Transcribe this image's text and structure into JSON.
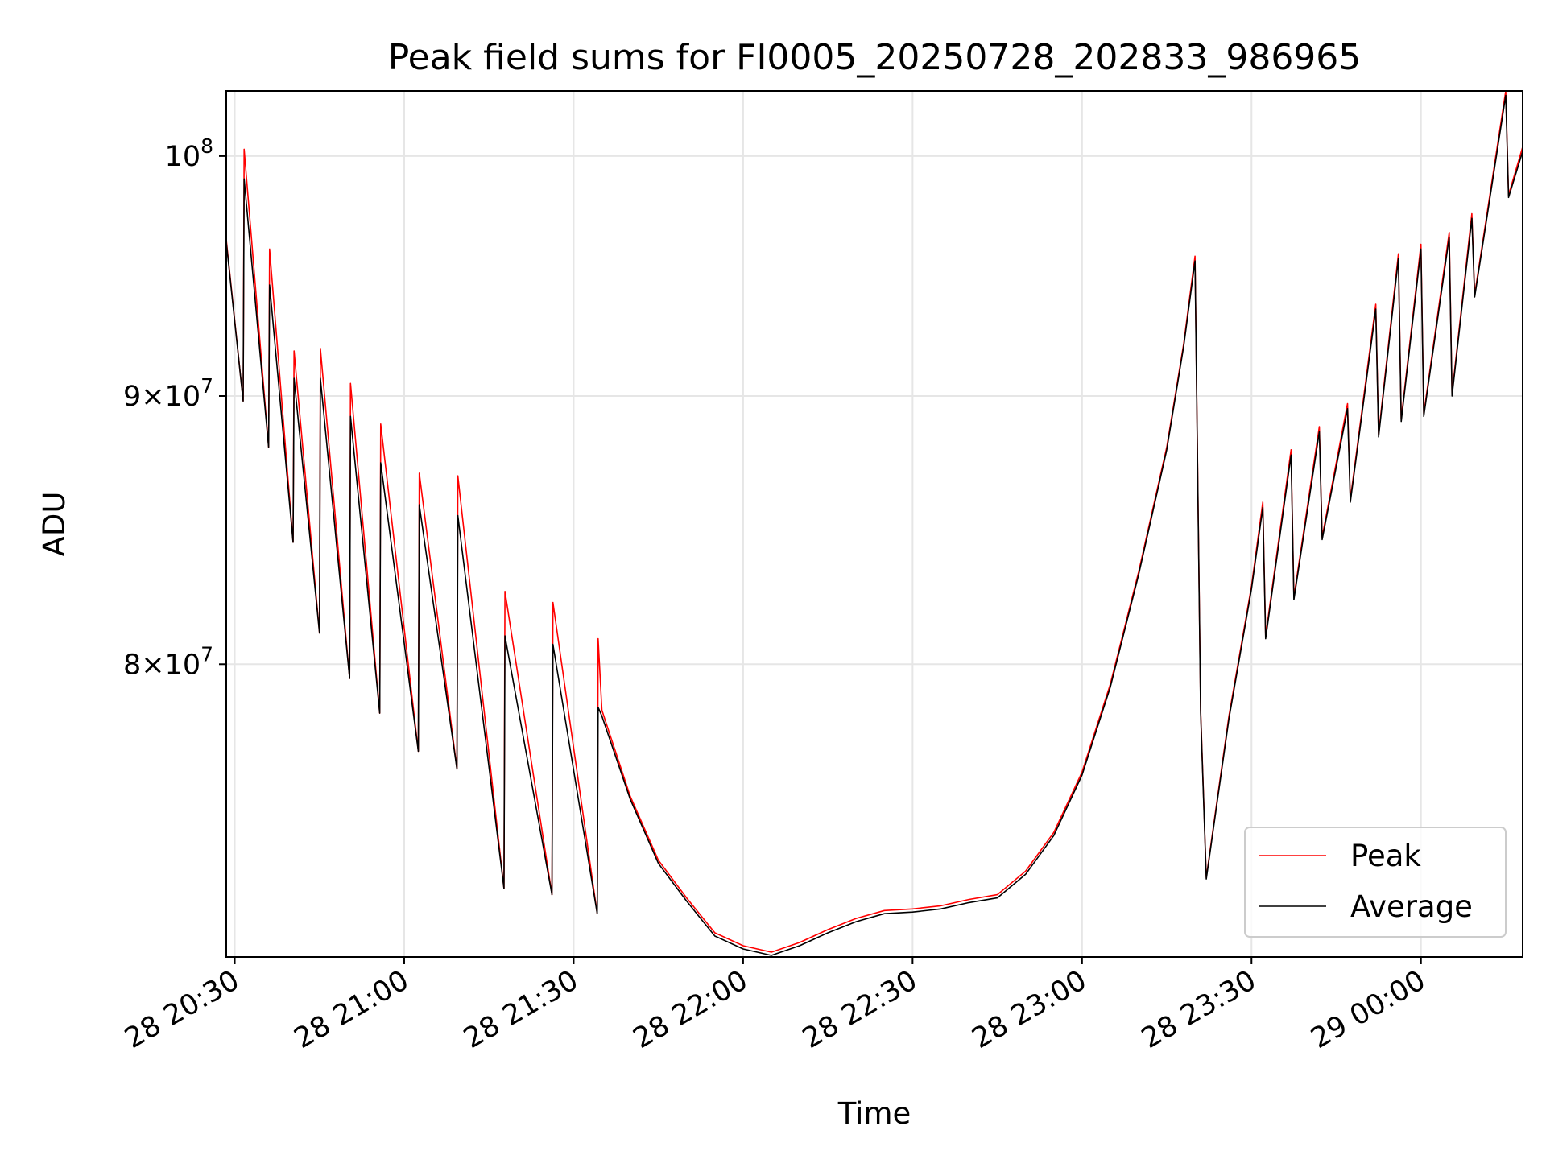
{
  "chart_data": {
    "type": "line",
    "title": "Peak field sums for FI0005_20250728_202833_986965",
    "xlabel": "Time",
    "ylabel": "ADU",
    "y_scale": "log",
    "ylim": [
      70350000,
      102900000
    ],
    "xlim": [
      "2025-07-28T20:28:30",
      "2025-07-29T00:18:00"
    ],
    "grid": true,
    "legend_position": "lower right",
    "x_ticks": [
      {
        "value": "2025-07-28T20:30:00",
        "label": "28 20:30"
      },
      {
        "value": "2025-07-28T21:00:00",
        "label": "28 21:00"
      },
      {
        "value": "2025-07-28T21:30:00",
        "label": "28 21:30"
      },
      {
        "value": "2025-07-28T22:00:00",
        "label": "28 22:00"
      },
      {
        "value": "2025-07-28T22:30:00",
        "label": "28 22:30"
      },
      {
        "value": "2025-07-28T23:00:00",
        "label": "28 23:00"
      },
      {
        "value": "2025-07-28T23:30:00",
        "label": "28 23:30"
      },
      {
        "value": "2025-07-29T00:00:00",
        "label": "29 00:00"
      }
    ],
    "y_ticks": [
      {
        "value": 80000000,
        "mantissa": "8",
        "base": "10",
        "exponent": "7"
      },
      {
        "value": 90000000,
        "mantissa": "9",
        "base": "10",
        "exponent": "7"
      },
      {
        "value": 100000000,
        "mantissa": "",
        "base": "10",
        "exponent": "8"
      }
    ],
    "series": [
      {
        "name": "Peak",
        "color": "#ff0000",
        "points": [
          [
            "2025-07-28T20:28:30",
            96400000
          ],
          [
            "2025-07-28T20:31:30",
            89800000
          ],
          [
            "2025-07-28T20:31:40",
            100300000
          ],
          [
            "2025-07-28T20:36:00",
            88000000
          ],
          [
            "2025-07-28T20:36:10",
            96000000
          ],
          [
            "2025-07-28T20:40:20",
            84400000
          ],
          [
            "2025-07-28T20:40:30",
            91800000
          ],
          [
            "2025-07-28T20:45:00",
            81100000
          ],
          [
            "2025-07-28T20:45:10",
            91900000
          ],
          [
            "2025-07-28T20:50:20",
            79500000
          ],
          [
            "2025-07-28T20:50:30",
            90500000
          ],
          [
            "2025-07-28T20:55:40",
            78300000
          ],
          [
            "2025-07-28T20:55:50",
            88900000
          ],
          [
            "2025-07-28T21:02:30",
            77000000
          ],
          [
            "2025-07-28T21:02:40",
            87000000
          ],
          [
            "2025-07-28T21:09:20",
            76400000
          ],
          [
            "2025-07-28T21:09:30",
            86900000
          ],
          [
            "2025-07-28T21:17:40",
            72500000
          ],
          [
            "2025-07-28T21:17:50",
            82600000
          ],
          [
            "2025-07-28T21:26:10",
            72300000
          ],
          [
            "2025-07-28T21:26:20",
            82200000
          ],
          [
            "2025-07-28T21:34:10",
            71700000
          ],
          [
            "2025-07-28T21:34:20",
            80900000
          ],
          [
            "2025-07-28T21:35:00",
            78400000
          ],
          [
            "2025-07-28T21:40:00",
            75500000
          ],
          [
            "2025-07-28T21:45:00",
            73400000
          ],
          [
            "2025-07-28T21:50:00",
            72200000
          ],
          [
            "2025-07-28T21:55:00",
            71100000
          ],
          [
            "2025-07-28T22:00:00",
            70700000
          ],
          [
            "2025-07-28T22:05:00",
            70500000
          ],
          [
            "2025-07-28T22:10:00",
            70800000
          ],
          [
            "2025-07-28T22:15:00",
            71200000
          ],
          [
            "2025-07-28T22:20:00",
            71550000
          ],
          [
            "2025-07-28T22:25:00",
            71800000
          ],
          [
            "2025-07-28T22:30:00",
            71850000
          ],
          [
            "2025-07-28T22:35:00",
            71950000
          ],
          [
            "2025-07-28T22:40:00",
            72150000
          ],
          [
            "2025-07-28T22:45:00",
            72300000
          ],
          [
            "2025-07-28T22:50:00",
            73050000
          ],
          [
            "2025-07-28T22:55:00",
            74300000
          ],
          [
            "2025-07-28T23:00:00",
            76300000
          ],
          [
            "2025-07-28T23:05:00",
            79300000
          ],
          [
            "2025-07-28T23:10:00",
            83300000
          ],
          [
            "2025-07-28T23:15:00",
            88000000
          ],
          [
            "2025-07-28T23:18:00",
            92100000
          ],
          [
            "2025-07-28T23:20:00",
            95700000
          ],
          [
            "2025-07-28T23:21:00",
            78400000
          ],
          [
            "2025-07-28T23:22:00",
            72850000
          ],
          [
            "2025-07-28T23:26:00",
            78200000
          ],
          [
            "2025-07-28T23:30:00",
            82800000
          ],
          [
            "2025-07-28T23:32:00",
            85900000
          ],
          [
            "2025-07-28T23:32:30",
            81000000
          ],
          [
            "2025-07-28T23:37:00",
            87900000
          ],
          [
            "2025-07-28T23:37:30",
            82400000
          ],
          [
            "2025-07-28T23:42:00",
            88800000
          ],
          [
            "2025-07-28T23:42:30",
            84600000
          ],
          [
            "2025-07-28T23:47:00",
            89700000
          ],
          [
            "2025-07-28T23:47:30",
            86000000
          ],
          [
            "2025-07-28T23:52:00",
            93700000
          ],
          [
            "2025-07-28T23:52:30",
            88500000
          ],
          [
            "2025-07-28T23:56:00",
            95800000
          ],
          [
            "2025-07-28T23:56:30",
            89100000
          ],
          [
            "2025-07-29T00:00:00",
            96200000
          ],
          [
            "2025-07-29T00:00:30",
            89300000
          ],
          [
            "2025-07-29T00:05:00",
            96700000
          ],
          [
            "2025-07-29T00:05:30",
            90100000
          ],
          [
            "2025-07-29T00:09:00",
            97500000
          ],
          [
            "2025-07-29T00:09:30",
            94100000
          ],
          [
            "2025-07-29T00:15:00",
            102900000
          ],
          [
            "2025-07-29T00:15:30",
            98300000
          ],
          [
            "2025-07-29T00:18:00",
            100400000
          ]
        ]
      },
      {
        "name": "Average",
        "color": "#000000",
        "points": [
          [
            "2025-07-28T20:28:30",
            96300000
          ],
          [
            "2025-07-28T20:31:30",
            89800000
          ],
          [
            "2025-07-28T20:31:40",
            99000000
          ],
          [
            "2025-07-28T20:36:00",
            88000000
          ],
          [
            "2025-07-28T20:36:10",
            94500000
          ],
          [
            "2025-07-28T20:40:20",
            84400000
          ],
          [
            "2025-07-28T20:40:30",
            90700000
          ],
          [
            "2025-07-28T20:45:00",
            81100000
          ],
          [
            "2025-07-28T20:45:10",
            90700000
          ],
          [
            "2025-07-28T20:50:20",
            79500000
          ],
          [
            "2025-07-28T20:50:30",
            89200000
          ],
          [
            "2025-07-28T20:55:40",
            78300000
          ],
          [
            "2025-07-28T20:55:50",
            87400000
          ],
          [
            "2025-07-28T21:02:30",
            77000000
          ],
          [
            "2025-07-28T21:02:40",
            85800000
          ],
          [
            "2025-07-28T21:09:20",
            76400000
          ],
          [
            "2025-07-28T21:09:30",
            85400000
          ],
          [
            "2025-07-28T21:17:40",
            72500000
          ],
          [
            "2025-07-28T21:17:50",
            81000000
          ],
          [
            "2025-07-28T21:26:10",
            72300000
          ],
          [
            "2025-07-28T21:26:20",
            80700000
          ],
          [
            "2025-07-28T21:34:10",
            71700000
          ],
          [
            "2025-07-28T21:34:20",
            78500000
          ],
          [
            "2025-07-28T21:35:00",
            78200000
          ],
          [
            "2025-07-28T21:40:00",
            75400000
          ],
          [
            "2025-07-28T21:45:00",
            73300000
          ],
          [
            "2025-07-28T21:50:00",
            72100000
          ],
          [
            "2025-07-28T21:55:00",
            71000000
          ],
          [
            "2025-07-28T22:00:00",
            70600000
          ],
          [
            "2025-07-28T22:05:00",
            70400000
          ],
          [
            "2025-07-28T22:10:00",
            70700000
          ],
          [
            "2025-07-28T22:15:00",
            71100000
          ],
          [
            "2025-07-28T22:20:00",
            71450000
          ],
          [
            "2025-07-28T22:25:00",
            71700000
          ],
          [
            "2025-07-28T22:30:00",
            71750000
          ],
          [
            "2025-07-28T22:35:00",
            71850000
          ],
          [
            "2025-07-28T22:40:00",
            72050000
          ],
          [
            "2025-07-28T22:45:00",
            72200000
          ],
          [
            "2025-07-28T22:50:00",
            72950000
          ],
          [
            "2025-07-28T22:55:00",
            74200000
          ],
          [
            "2025-07-28T23:00:00",
            76200000
          ],
          [
            "2025-07-28T23:05:00",
            79200000
          ],
          [
            "2025-07-28T23:10:00",
            83200000
          ],
          [
            "2025-07-28T23:15:00",
            87900000
          ],
          [
            "2025-07-28T23:18:00",
            92000000
          ],
          [
            "2025-07-28T23:20:00",
            95500000
          ],
          [
            "2025-07-28T23:21:00",
            78300000
          ],
          [
            "2025-07-28T23:22:00",
            72800000
          ],
          [
            "2025-07-28T23:26:00",
            78100000
          ],
          [
            "2025-07-28T23:30:00",
            82700000
          ],
          [
            "2025-07-28T23:32:00",
            85700000
          ],
          [
            "2025-07-28T23:32:30",
            80900000
          ],
          [
            "2025-07-28T23:37:00",
            87700000
          ],
          [
            "2025-07-28T23:37:30",
            82300000
          ],
          [
            "2025-07-28T23:42:00",
            88600000
          ],
          [
            "2025-07-28T23:42:30",
            84500000
          ],
          [
            "2025-07-28T23:47:00",
            89500000
          ],
          [
            "2025-07-28T23:47:30",
            85900000
          ],
          [
            "2025-07-28T23:52:00",
            93500000
          ],
          [
            "2025-07-28T23:52:30",
            88400000
          ],
          [
            "2025-07-28T23:56:00",
            95600000
          ],
          [
            "2025-07-28T23:56:30",
            89000000
          ],
          [
            "2025-07-29T00:00:00",
            96000000
          ],
          [
            "2025-07-29T00:00:30",
            89200000
          ],
          [
            "2025-07-29T00:05:00",
            96500000
          ],
          [
            "2025-07-29T00:05:30",
            90000000
          ],
          [
            "2025-07-29T00:09:00",
            97300000
          ],
          [
            "2025-07-29T00:09:30",
            94000000
          ],
          [
            "2025-07-29T00:15:00",
            102700000
          ],
          [
            "2025-07-29T00:15:30",
            98200000
          ],
          [
            "2025-07-29T00:18:00",
            100200000
          ]
        ]
      }
    ]
  }
}
